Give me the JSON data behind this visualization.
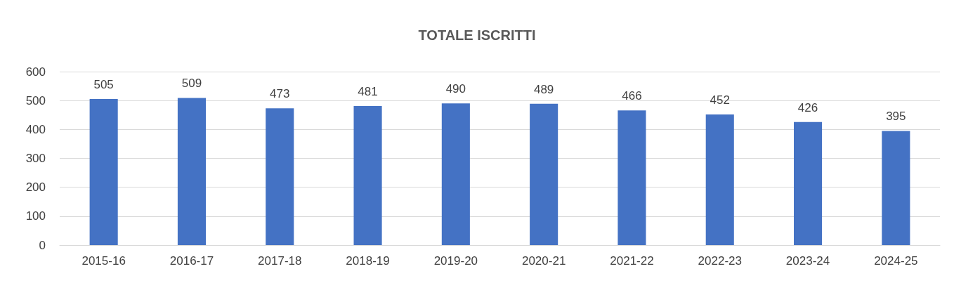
{
  "chart_data": {
    "type": "bar",
    "title": "TOTALE ISCRITTI",
    "categories": [
      "2015-16",
      "2016-17",
      "2017-18",
      "2018-19",
      "2019-20",
      "2020-21",
      "2021-22",
      "2022-23",
      "2023-24",
      "2024-25"
    ],
    "values": [
      505,
      509,
      473,
      481,
      490,
      489,
      466,
      452,
      426,
      395
    ],
    "color": "#4472c4",
    "ylim": [
      0,
      600
    ],
    "yticks": [
      0,
      100,
      200,
      300,
      400,
      500,
      600
    ],
    "grid": "y",
    "data_labels": true
  }
}
